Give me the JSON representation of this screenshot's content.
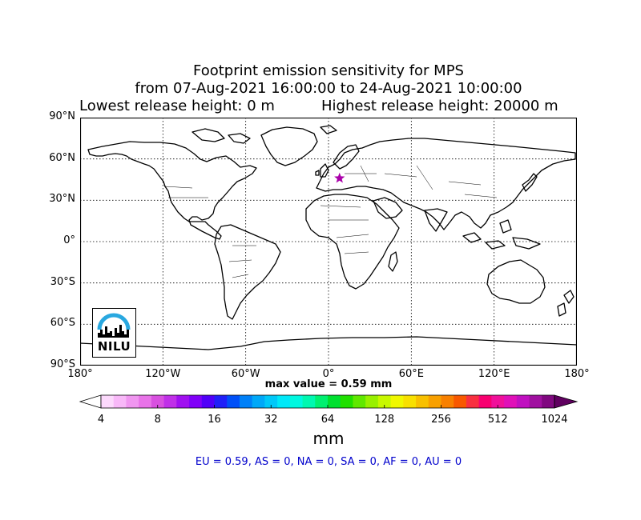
{
  "title": {
    "line1": "Footprint emission sensitivity for MPS",
    "line2": "from 07-Aug-2021 16:00:00 to 24-Aug-2021 10:00:00",
    "lowest_release": "Lowest release height: 0 m",
    "highest_release": "Highest release height: 20000 m"
  },
  "map": {
    "lat_ticks": [
      "90°N",
      "60°N",
      "30°N",
      "0°",
      "30°S",
      "60°S",
      "90°S"
    ],
    "lon_ticks": [
      "180°",
      "120°W",
      "60°W",
      "0°",
      "60°E",
      "120°E",
      "180°"
    ],
    "release_site": {
      "lon": 8.0,
      "lat": 46.0,
      "color": "#aa00aa"
    },
    "logo_text": "NILU",
    "logo_colors": {
      "arc": "#29a8e0",
      "skyline": "#000000"
    }
  },
  "max_value_label": "max value = 0.59 mm",
  "colorbar": {
    "ticks": [
      "4",
      "8",
      "16",
      "32",
      "64",
      "128",
      "256",
      "512",
      "1024"
    ],
    "unit": "mm",
    "colors": [
      "#fef0fe",
      "#fcd9fc",
      "#f8b8f8",
      "#f096f0",
      "#e873e8",
      "#d850e0",
      "#c030e8",
      "#a010f0",
      "#8000f8",
      "#5000f8",
      "#2020f8",
      "#0050f8",
      "#0080f8",
      "#00a8f8",
      "#00c8f8",
      "#00e8f8",
      "#00f8e0",
      "#00f8b0",
      "#00f070",
      "#00e030",
      "#20e000",
      "#60e800",
      "#98f000",
      "#c8f800",
      "#f0f800",
      "#f8e000",
      "#f8c000",
      "#f8a000",
      "#f88000",
      "#f85800",
      "#f83040",
      "#f80070",
      "#f0109a",
      "#e010b8",
      "#c010c0",
      "#a010a0",
      "#800880",
      "#600060"
    ]
  },
  "stats_line": "EU = 0.59,  AS = 0,  NA = 0,  SA = 0,  AF = 0,  AU = 0"
}
